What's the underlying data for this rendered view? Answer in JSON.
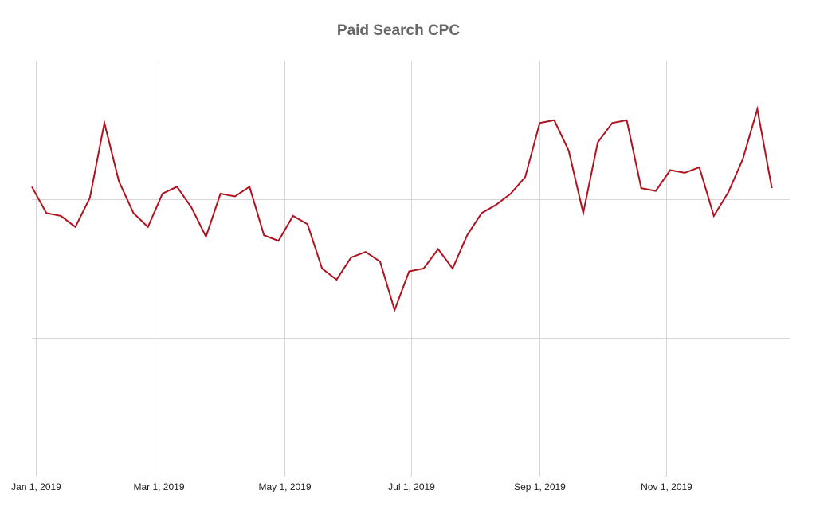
{
  "chart_data": {
    "type": "line",
    "title": "Paid Search CPC",
    "xlabel": "",
    "ylabel": "",
    "x_tick_labels": [
      "Jan 1, 2019",
      "Mar 1, 2019",
      "May 1, 2019",
      "Jul 1, 2019",
      "Sep 1, 2019",
      "Nov 1, 2019"
    ],
    "x_tick_dates": [
      "2019-01-01",
      "2019-03-01",
      "2019-05-01",
      "2019-07-01",
      "2019-09-01",
      "2019-11-01"
    ],
    "xlim": [
      "2018-12-30",
      "2019-12-31"
    ],
    "y_tick_labels": [],
    "ylim": [
      0,
      3
    ],
    "y_gridlines": [
      0,
      1,
      2,
      3
    ],
    "grid": true,
    "legend": "none",
    "line_color": "#b0121f",
    "series": [
      {
        "x": [
          "2018-12-30",
          "2019-01-06",
          "2019-01-13",
          "2019-01-20",
          "2019-01-27",
          "2019-02-03",
          "2019-02-10",
          "2019-02-17",
          "2019-02-24",
          "2019-03-03",
          "2019-03-10",
          "2019-03-17",
          "2019-03-24",
          "2019-03-31",
          "2019-04-07",
          "2019-04-14",
          "2019-04-21",
          "2019-04-28",
          "2019-05-05",
          "2019-05-12",
          "2019-05-19",
          "2019-05-26",
          "2019-06-02",
          "2019-06-09",
          "2019-06-16",
          "2019-06-23",
          "2019-06-30",
          "2019-07-07",
          "2019-07-14",
          "2019-07-21",
          "2019-07-28",
          "2019-08-04",
          "2019-08-11",
          "2019-08-18",
          "2019-08-25",
          "2019-09-01",
          "2019-09-08",
          "2019-09-15",
          "2019-09-22",
          "2019-09-29",
          "2019-10-06",
          "2019-10-13",
          "2019-10-20",
          "2019-10-27",
          "2019-11-03",
          "2019-11-10",
          "2019-11-17",
          "2019-11-24",
          "2019-12-01",
          "2019-12-08",
          "2019-12-15",
          "2019-12-22"
        ],
        "y": [
          2.09,
          1.9,
          1.88,
          1.8,
          2.01,
          2.55,
          2.13,
          1.9,
          1.8,
          2.04,
          2.09,
          1.94,
          1.73,
          2.04,
          2.02,
          2.09,
          1.74,
          1.7,
          1.88,
          1.82,
          1.5,
          1.42,
          1.58,
          1.62,
          1.55,
          1.2,
          1.48,
          1.5,
          1.64,
          1.5,
          1.74,
          1.9,
          1.96,
          2.04,
          2.16,
          2.55,
          2.57,
          2.35,
          1.9,
          2.41,
          2.55,
          2.57,
          2.08,
          2.06,
          2.21,
          2.19,
          2.23,
          1.88,
          2.05,
          2.29,
          2.65,
          2.08
        ]
      }
    ]
  }
}
